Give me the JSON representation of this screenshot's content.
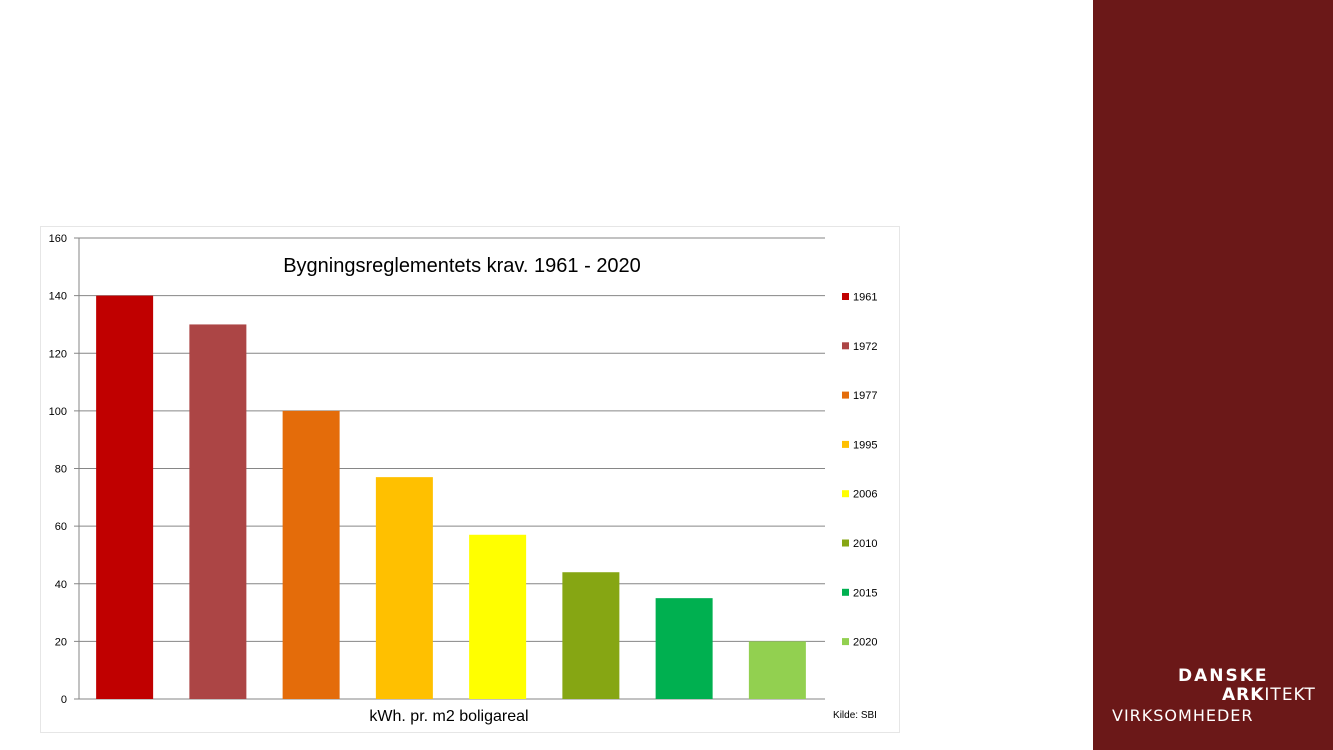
{
  "chart_data": {
    "type": "bar",
    "title": "Bygningsreglementets krav. 1961 - 2020",
    "xlabel": "kWh. pr. m2 boligareal",
    "ylabel": "",
    "ylim": [
      0,
      160
    ],
    "yticks": [
      0,
      20,
      40,
      60,
      80,
      100,
      120,
      140,
      160
    ],
    "grid": true,
    "legend_position": "right",
    "source_note": "Kilde: SBI",
    "series": [
      {
        "name": "1961",
        "value": 140,
        "color": "#c00000"
      },
      {
        "name": "1972",
        "value": 130,
        "color": "#ac4545"
      },
      {
        "name": "1977",
        "value": 100,
        "color": "#e46c0a"
      },
      {
        "name": "1995",
        "value": 77,
        "color": "#ffc000"
      },
      {
        "name": "2006",
        "value": 57,
        "color": "#ffff00"
      },
      {
        "name": "2010",
        "value": 44,
        "color": "#86a613"
      },
      {
        "name": "2015",
        "value": 35,
        "color": "#00b050"
      },
      {
        "name": "2020",
        "value": 20,
        "color": "#92d050"
      }
    ]
  },
  "logo": {
    "line1": "DANSKE",
    "line2_bold": "ARK",
    "line2_rest": "ITEKT",
    "line3": "VIRKSOMHEDER"
  },
  "colors": {
    "sidebar": "#6b1818",
    "gridline": "#868686"
  }
}
